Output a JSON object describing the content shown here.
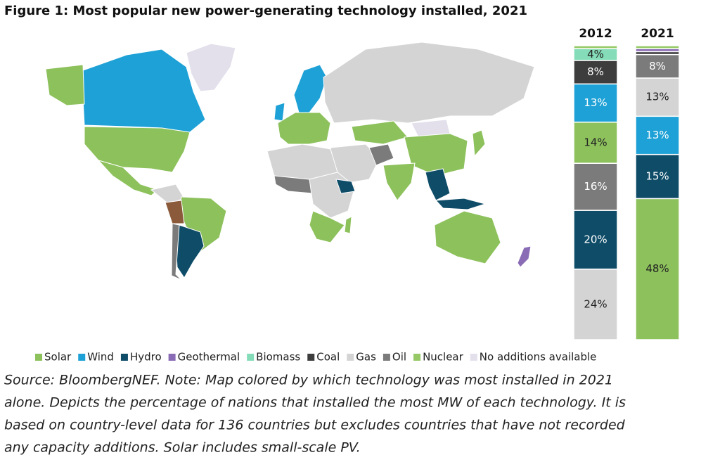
{
  "chart_data": [
    {
      "type": "map",
      "title": "Figure 1: Most popular new power-generating technology installed, 2021",
      "legend": [
        {
          "name": "Solar",
          "color": "#8dc15c"
        },
        {
          "name": "Wind",
          "color": "#1ea1d6"
        },
        {
          "name": "Hydro",
          "color": "#0e4c68"
        },
        {
          "name": "Geothermal",
          "color": "#8a6bb5"
        },
        {
          "name": "Biomass",
          "color": "#84dcb8"
        },
        {
          "name": "Coal",
          "color": "#3d3d3d"
        },
        {
          "name": "Gas",
          "color": "#d4d4d4"
        },
        {
          "name": "Oil",
          "color": "#7b7b7b"
        },
        {
          "name": "Nuclear",
          "color": "#96c866"
        },
        {
          "name": "No additions available",
          "color": "#e3e0ec"
        }
      ],
      "note": [
        "Source: BloombergNEF. Note: Map colored by which technology was most installed in 2021",
        "alone. Depicts the percentage of nations that installed the most MW of each technology. It is",
        "based on country-level data for 136 countries but excludes countries that have not recorded",
        "any capacity additions. Solar includes small-scale PV."
      ]
    },
    {
      "type": "stacked-bar",
      "ylim": [
        0,
        100
      ],
      "bars": [
        {
          "label": "2012",
          "segments": [
            {
              "name": "Gas",
              "value": 24,
              "value_label": "24%"
            },
            {
              "name": "Hydro",
              "value": 20,
              "value_label": "20%"
            },
            {
              "name": "Oil",
              "value": 16,
              "value_label": "16%"
            },
            {
              "name": "Solar",
              "value": 14,
              "value_label": "14%"
            },
            {
              "name": "Wind",
              "value": 13,
              "value_label": "13%"
            },
            {
              "name": "Coal",
              "value": 8,
              "value_label": "8%"
            },
            {
              "name": "Biomass",
              "value": 4,
              "value_label": "4%"
            },
            {
              "name": "Nuclear",
              "value": 1
            }
          ]
        },
        {
          "label": "2021",
          "segments": [
            {
              "name": "Solar",
              "value": 48,
              "value_label": "48%"
            },
            {
              "name": "Hydro",
              "value": 15,
              "value_label": "15%"
            },
            {
              "name": "Wind",
              "value": 13,
              "value_label": "13%"
            },
            {
              "name": "Gas",
              "value": 13,
              "value_label": "13%"
            },
            {
              "name": "Oil",
              "value": 8,
              "value_label": "8%"
            },
            {
              "name": "Coal",
              "value": 1
            },
            {
              "name": "Geothermal",
              "value": 1
            },
            {
              "name": "Nuclear",
              "value": 1
            }
          ]
        }
      ]
    }
  ]
}
